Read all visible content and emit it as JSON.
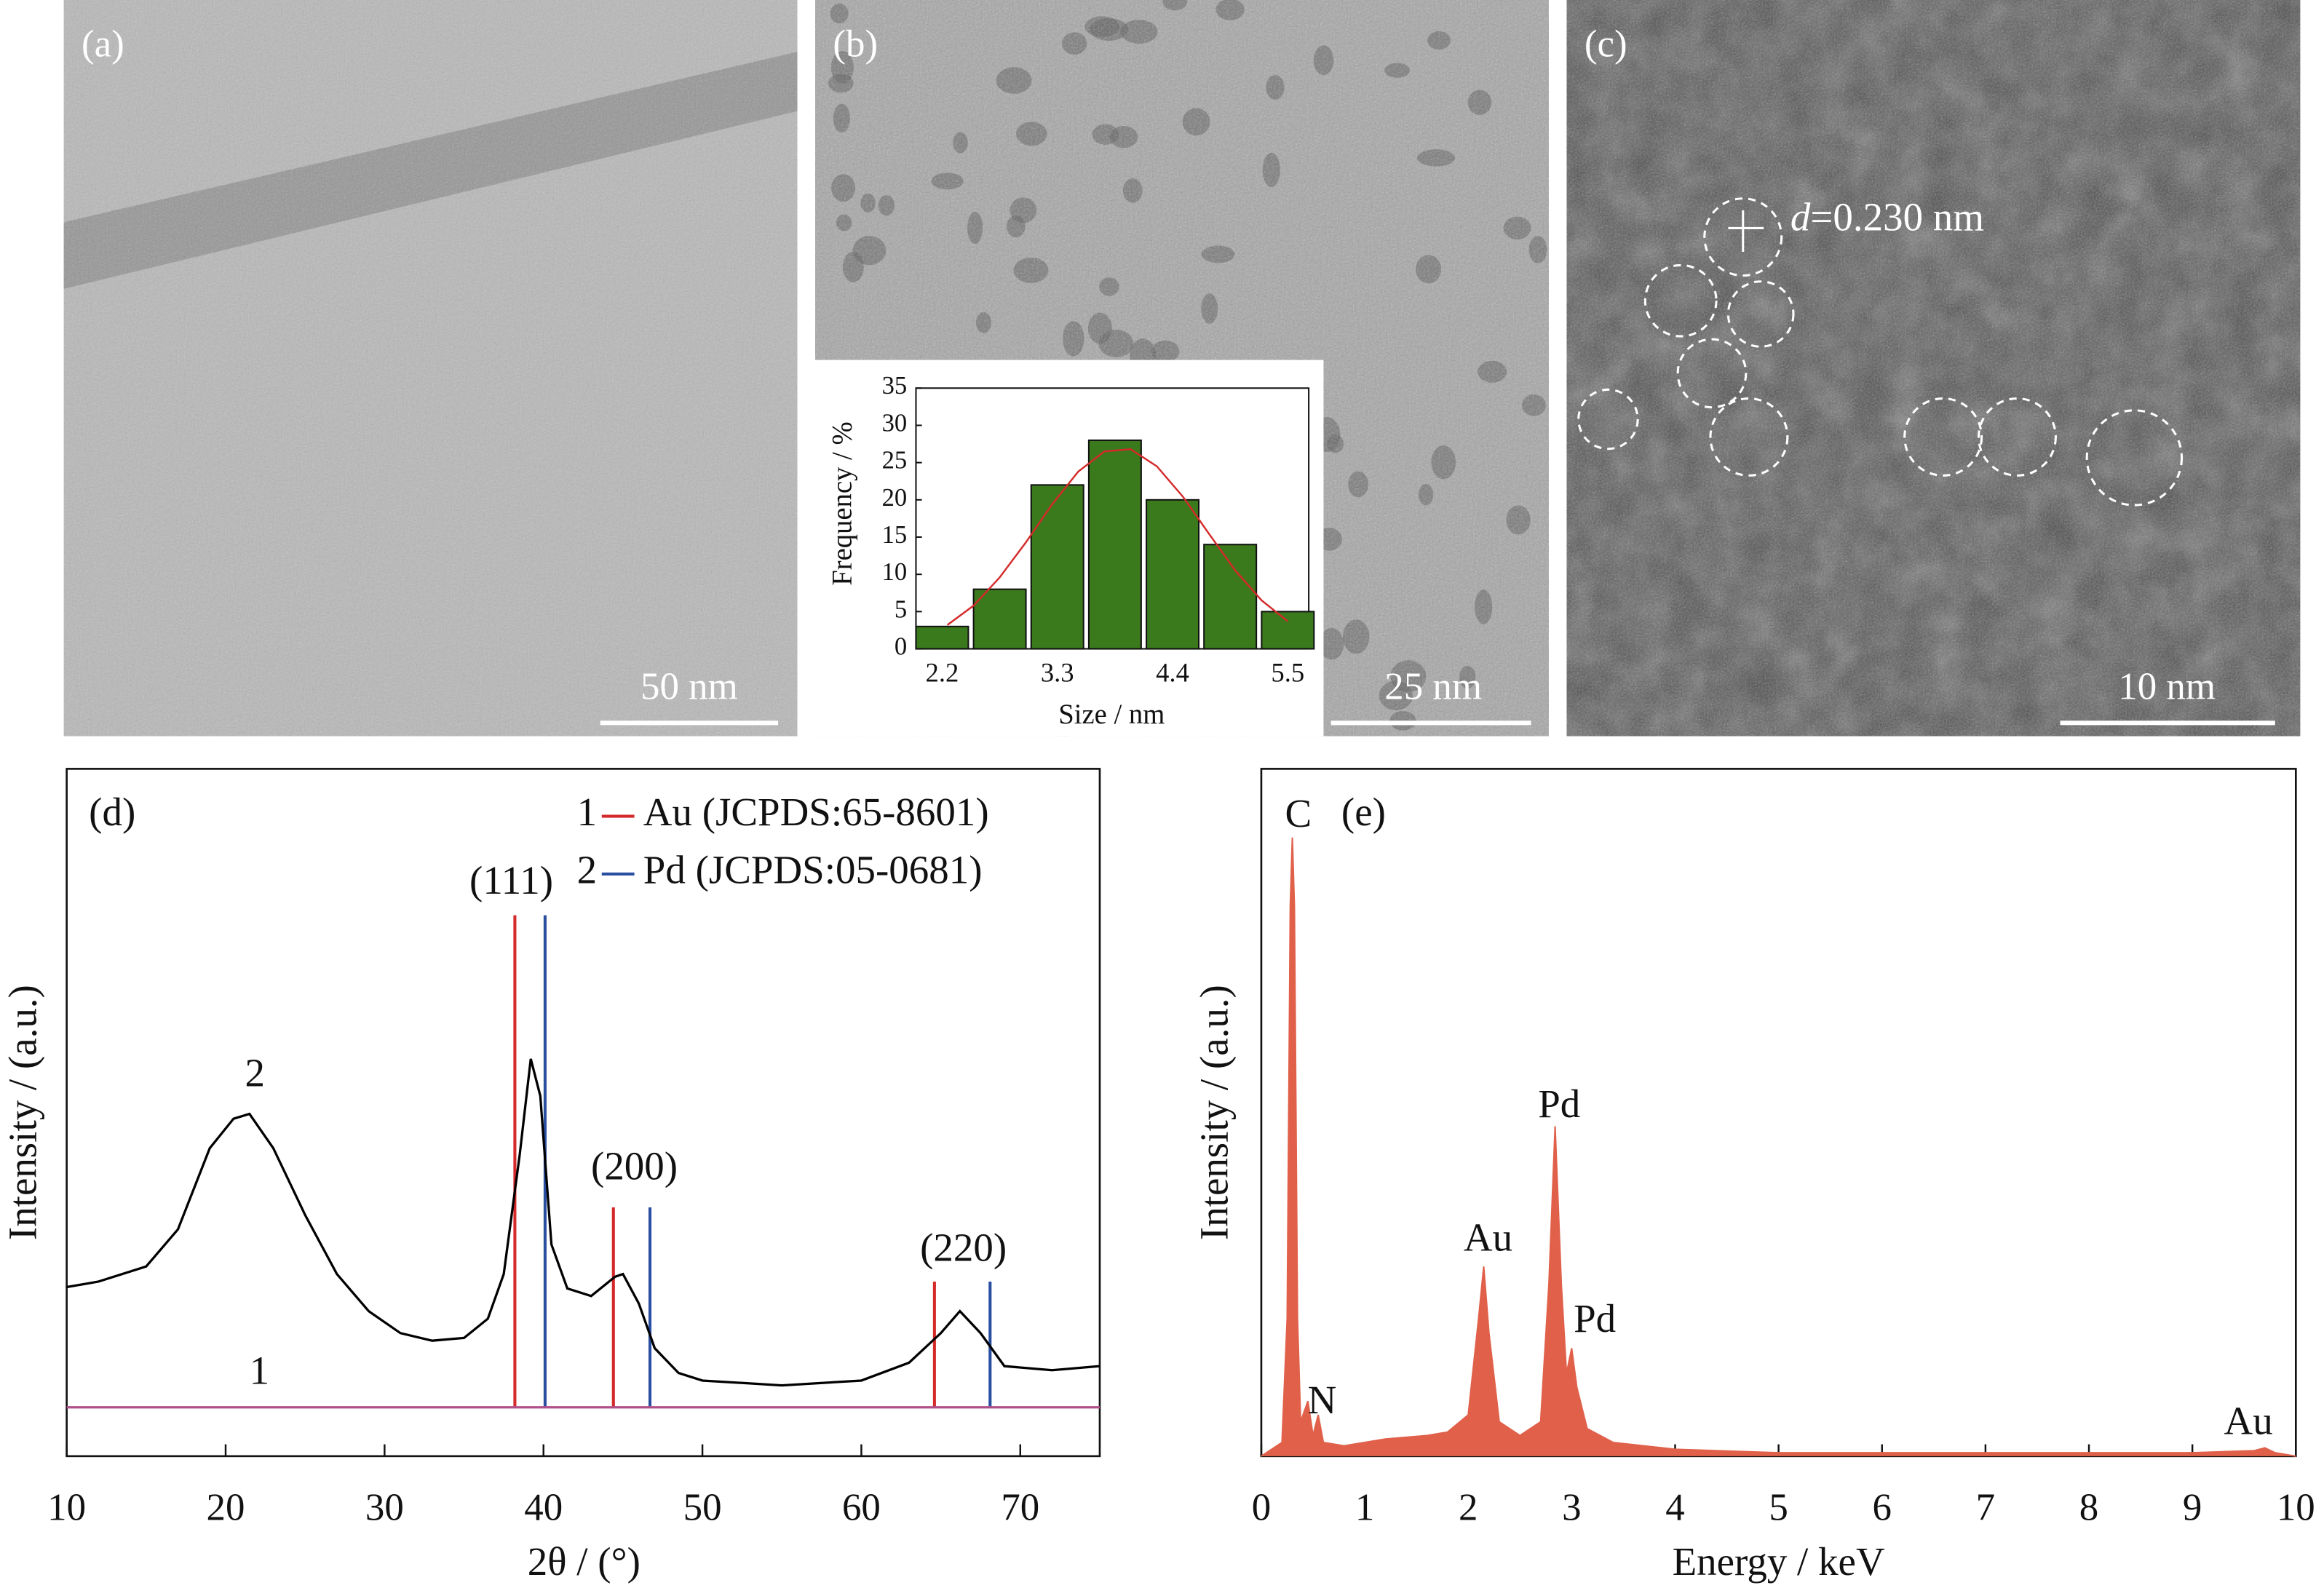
{
  "micrographs": [
    {
      "label": "(a)",
      "scale_bar": "50 nm"
    },
    {
      "label": "(b)",
      "scale_bar": "25 nm"
    },
    {
      "label": "(c)",
      "scale_bar": "10 nm",
      "spacing": {
        "symbol": "d",
        "text": "=0.230 nm"
      }
    }
  ],
  "chart_data": [
    {
      "type": "bar",
      "xlabel": "Size / nm",
      "ylabel": "Frequency / %",
      "x": [
        2.2,
        2.75,
        3.3,
        3.85,
        4.4,
        4.95,
        5.5
      ],
      "values": [
        3,
        8,
        22,
        28,
        20,
        14,
        5
      ],
      "color": "#3b7a1c",
      "xlim": [
        1.95,
        5.7
      ],
      "ylim": [
        0,
        35
      ],
      "xticks": [
        2.2,
        3.3,
        4.4,
        5.5
      ],
      "yticks": [
        0,
        5,
        10,
        15,
        20,
        25,
        30,
        35
      ],
      "fit": {
        "color": "#d42a2a",
        "x": [
          2.25,
          2.5,
          2.75,
          3.0,
          3.25,
          3.5,
          3.75,
          4.0,
          4.25,
          4.5,
          4.75,
          5.0,
          5.25,
          5.5
        ],
        "values": [
          3.2,
          5.8,
          9.6,
          14.3,
          19.4,
          23.8,
          26.5,
          26.8,
          24.5,
          20.4,
          15.4,
          10.5,
          6.5,
          3.7
        ]
      }
    },
    {
      "type": "line",
      "panel_label": "(d)",
      "xlabel": "2θ / (°)",
      "ylabel": "Intensity / (a.u.)",
      "xlim": [
        10,
        75
      ],
      "ylim": [
        0,
        100
      ],
      "xticks": [
        10,
        20,
        30,
        40,
        50,
        60,
        70
      ],
      "series": [
        {
          "name": "1",
          "color": "#b0508a",
          "x": [
            10,
            75
          ],
          "values": [
            7.1,
            7.1
          ]
        },
        {
          "name": "2",
          "color": "#000000",
          "x": [
            10,
            12,
            15,
            17,
            19,
            20.5,
            21.5,
            23,
            25,
            27,
            29,
            31,
            33,
            35,
            36.5,
            37.5,
            38.5,
            39.2,
            39.8,
            40.5,
            41.5,
            43,
            44.5,
            45,
            46,
            47,
            48.5,
            50,
            55,
            60,
            63,
            65,
            66.2,
            67.5,
            69,
            72,
            75
          ],
          "values": [
            24.6,
            25.4,
            27.6,
            33,
            44.8,
            49.1,
            49.8,
            44.8,
            35.1,
            26.5,
            21.1,
            17.9,
            16.8,
            17.2,
            20,
            26.5,
            43.8,
            57.8,
            52.4,
            30.8,
            24.4,
            23.3,
            26.1,
            26.5,
            22.2,
            15.7,
            12.1,
            11,
            10.3,
            11,
            13.6,
            17.9,
            21.1,
            17.9,
            13.1,
            12.5,
            13.1
          ]
        }
      ],
      "reference_series": [
        {
          "name": "Au (JCPDS:65-8601)",
          "legend_number": "1",
          "color": "#d42a2a",
          "x": [
            38.2,
            44.4,
            64.6
          ],
          "values": [
            78.7,
            36.2,
            25.4
          ]
        },
        {
          "name": "Pd (JCPDS:05-0681)",
          "legend_number": "2",
          "color": "#2a4fa0",
          "x": [
            40.1,
            46.7,
            68.1
          ],
          "values": [
            78.7,
            36.2,
            25.4
          ]
        }
      ],
      "annotations": [
        "(111)",
        "(200)",
        "(220)"
      ]
    },
    {
      "type": "area",
      "panel_label": "(e)",
      "xlabel": "Energy / keV",
      "ylabel": "Intensity / (a.u.)",
      "xlim": [
        0,
        10
      ],
      "ylim": [
        0,
        100
      ],
      "xticks": [
        0,
        1,
        2,
        3,
        4,
        5,
        6,
        7,
        8,
        9,
        10
      ],
      "series": [
        {
          "color": "#e0604a",
          "x": [
            0,
            0.2,
            0.25,
            0.28,
            0.3,
            0.32,
            0.35,
            0.38,
            0.45,
            0.5,
            0.55,
            0.6,
            0.8,
            1.2,
            1.6,
            1.8,
            2.0,
            2.1,
            2.15,
            2.2,
            2.3,
            2.5,
            2.7,
            2.78,
            2.84,
            2.9,
            2.95,
            3.0,
            3.05,
            3.15,
            3.4,
            4,
            5,
            7,
            9,
            9.6,
            9.7,
            9.8,
            10
          ],
          "values": [
            0,
            2,
            20,
            80,
            90,
            80,
            20,
            5,
            8,
            3,
            6,
            2,
            1.5,
            2.5,
            3,
            3.5,
            6,
            20,
            27.6,
            18,
            5,
            3,
            5,
            25,
            48,
            25,
            12,
            15.7,
            10,
            4,
            2,
            1,
            0.5,
            0.5,
            0.5,
            0.8,
            1.2,
            0.5,
            0
          ]
        }
      ],
      "annotations": [
        "C",
        "N",
        "Au",
        "Pd",
        "Pd",
        "Au"
      ]
    }
  ]
}
